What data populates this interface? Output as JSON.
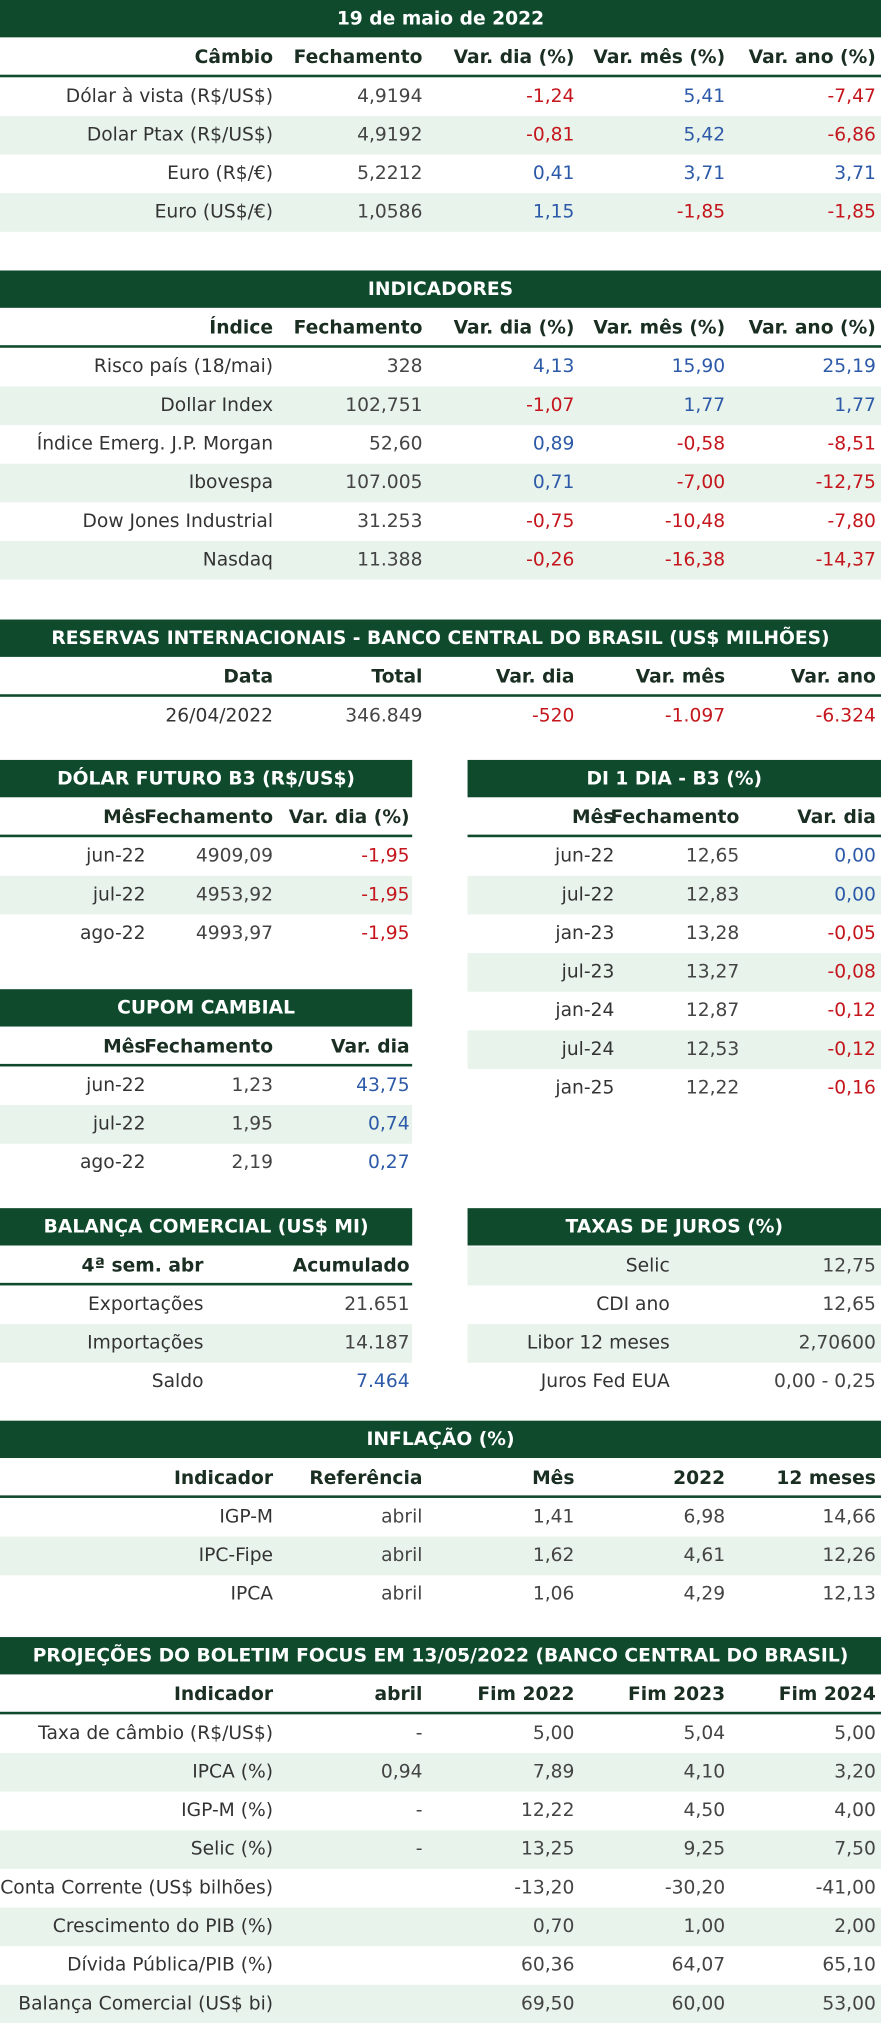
{
  "tables": [
    {
      "title": "19 de maio de 2022",
      "columns": [
        "Câmbio",
        "Fechamento",
        "Var. dia (%)",
        "Var. mês (%)",
        "Var. ano (%)"
      ],
      "colored_columns": [
        2,
        3,
        4
      ],
      "rows": [
        [
          "Dólar à vista (R$/US$)",
          "4,9194",
          "-1,24",
          "5,41",
          "-7,47"
        ],
        [
          "Dolar Ptax (R$/US$)",
          "4,9192",
          "-0,81",
          "5,42",
          "-6,86"
        ],
        [
          "Euro (R$/€)",
          "5,2212",
          "0,41",
          "3,71",
          "3,71"
        ],
        [
          "Euro (US$/€)",
          "1,0586",
          "1,15",
          "-1,85",
          "-1,85"
        ]
      ]
    },
    {
      "title": "INDICADORES",
      "columns": [
        "Índice",
        "Fechamento",
        "Var. dia (%)",
        "Var. mês (%)",
        "Var. ano (%)"
      ],
      "colored_columns": [
        2,
        3,
        4
      ],
      "rows": [
        [
          "Risco país (18/mai)",
          "328",
          "4,13",
          "15,90",
          "25,19"
        ],
        [
          "Dollar Index",
          "102,751",
          "-1,07",
          "1,77",
          "1,77"
        ],
        [
          "Índice Emerg. J.P. Morgan",
          "52,60",
          "0,89",
          "-0,58",
          "-8,51"
        ],
        [
          "Ibovespa",
          "107.005",
          "0,71",
          "-7,00",
          "-12,75"
        ],
        [
          "Dow Jones Industrial",
          "31.253",
          "-0,75",
          "-10,48",
          "-7,80"
        ],
        [
          "Nasdaq",
          "11.388",
          "-0,26",
          "-16,38",
          "-14,37"
        ]
      ]
    },
    {
      "title": "RESERVAS INTERNACIONAIS - BANCO CENTRAL DO BRASIL (US$ MILHÕES)",
      "columns": [
        "Data",
        "Total",
        "Var. dia",
        "Var. mês",
        "Var. ano"
      ],
      "colored_columns": [
        2,
        3,
        4
      ],
      "rows": [
        [
          "26/04/2022",
          "346.849",
          "-520",
          "-1.097",
          "-6.324"
        ]
      ]
    },
    {
      "title": "DÓLAR FUTURO B3 (R$/US$)",
      "columns": [
        "Mês",
        "Fechamento",
        "Var. dia (%)"
      ],
      "colored_columns": [
        2
      ],
      "rows": [
        [
          "jun-22",
          "4909,09",
          "-1,95"
        ],
        [
          "jul-22",
          "4953,92",
          "-1,95"
        ],
        [
          "ago-22",
          "4993,97",
          "-1,95"
        ]
      ]
    },
    {
      "title": "DI 1 DIA - B3 (%)",
      "columns": [
        "Mês",
        "Fechamento",
        "Var. dia"
      ],
      "colored_columns": [
        2
      ],
      "rows": [
        [
          "jun-22",
          "12,65",
          "0,00"
        ],
        [
          "jul-22",
          "12,83",
          "0,00"
        ],
        [
          "jan-23",
          "13,28",
          "-0,05"
        ],
        [
          "jul-23",
          "13,27",
          "-0,08"
        ],
        [
          "jan-24",
          "12,87",
          "-0,12"
        ],
        [
          "jul-24",
          "12,53",
          "-0,12"
        ],
        [
          "jan-25",
          "12,22",
          "-0,16"
        ]
      ]
    },
    {
      "title": "CUPOM CAMBIAL",
      "columns": [
        "Mês",
        "Fechamento",
        "Var. dia"
      ],
      "colored_columns": [
        2
      ],
      "rows": [
        [
          "jun-22",
          "1,23",
          "43,75"
        ],
        [
          "jul-22",
          "1,95",
          "0,74"
        ],
        [
          "ago-22",
          "2,19",
          "0,27"
        ]
      ]
    },
    {
      "title": "BALANÇA COMERCIAL (US$ MI)",
      "columns": [
        "4ª sem. abr",
        "Acumulado"
      ],
      "colored_cells": [
        [
          2,
          1
        ]
      ],
      "rows": [
        [
          "Exportações",
          "21.651"
        ],
        [
          "Importações",
          "14.187"
        ],
        [
          "Saldo",
          "7.464"
        ]
      ]
    },
    {
      "title": "TAXAS DE JUROS (%)",
      "rows": [
        [
          "Selic",
          "12,75"
        ],
        [
          "CDI ano",
          "12,65"
        ],
        [
          "Libor 12 meses",
          "2,70600"
        ],
        [
          "Juros Fed EUA",
          "0,00 - 0,25"
        ]
      ]
    },
    {
      "title": "INFLAÇÃO (%)",
      "columns": [
        "Indicador",
        "Referência",
        "Mês",
        "2022",
        "12 meses"
      ],
      "rows": [
        [
          "IGP-M",
          "abril",
          "1,41",
          "6,98",
          "14,66"
        ],
        [
          "IPC-Fipe",
          "abril",
          "1,62",
          "4,61",
          "12,26"
        ],
        [
          "IPCA",
          "abril",
          "1,06",
          "4,29",
          "12,13"
        ]
      ]
    },
    {
      "title": "PROJEÇÕES DO BOLETIM FOCUS EM 13/05/2022 (BANCO CENTRAL DO BRASIL)",
      "columns": [
        "Indicador",
        "abril",
        "Fim 2022",
        "Fim 2023",
        "Fim 2024"
      ],
      "rows": [
        [
          "Taxa de câmbio (R$/US$)",
          "-",
          "5,00",
          "5,04",
          "5,00"
        ],
        [
          "IPCA (%)",
          "0,94",
          "7,89",
          "4,10",
          "3,20"
        ],
        [
          "IGP-M (%)",
          "-",
          "12,22",
          "4,50",
          "4,00"
        ],
        [
          "Selic (%)",
          "-",
          "13,25",
          "9,25",
          "7,50"
        ],
        [
          "Conta Corrente (US$ bilhões)",
          "",
          "-13,20",
          "-30,20",
          "-41,00"
        ],
        [
          "Crescimento do PIB (%)",
          "",
          "0,70",
          "1,00",
          "2,00"
        ],
        [
          "Dívida Pública/PIB (%)",
          "",
          "60,36",
          "64,07",
          "65,10"
        ],
        [
          "Balança Comercial (US$ bi)",
          "",
          "69,50",
          "60,00",
          "53,00"
        ]
      ]
    }
  ]
}
